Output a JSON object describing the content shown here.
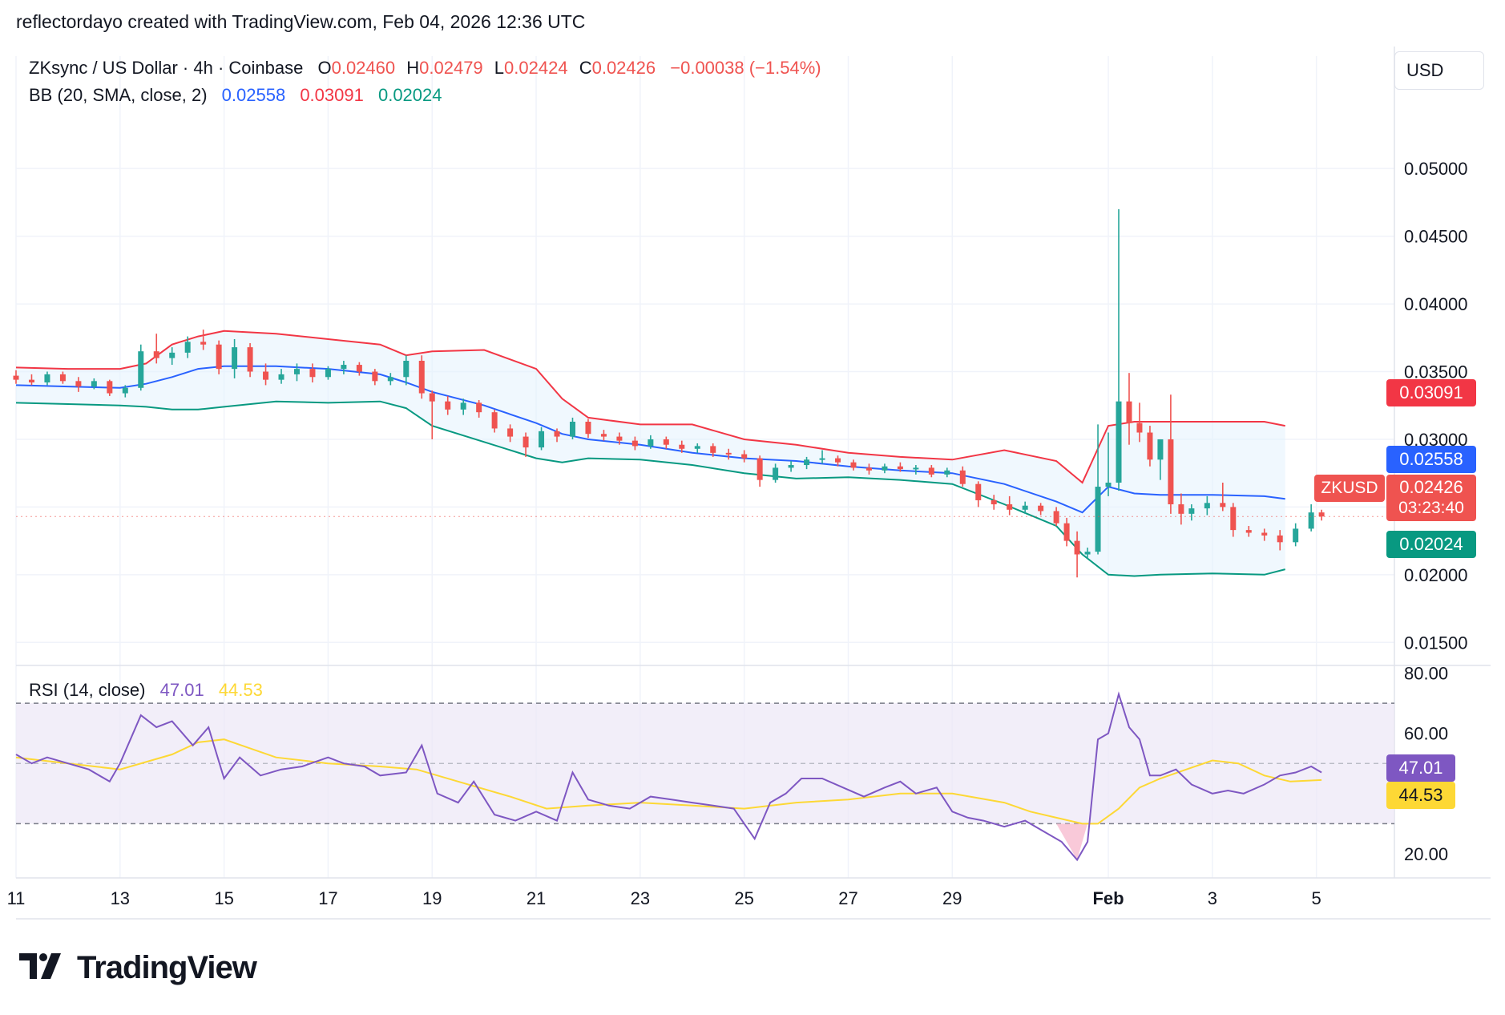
{
  "attribution": "reflectordayo created with TradingView.com, Feb 04, 2026 12:36 UTC",
  "legend": {
    "symbol": "ZKsync / US Dollar · 4h · Coinbase",
    "o_label": "O",
    "o": "0.02460",
    "h_label": "H",
    "h": "0.02479",
    "l_label": "L",
    "l": "0.02424",
    "c_label": "C",
    "c": "0.02426",
    "change": "−0.00038 (−1.54%)",
    "bb_label": "BB (20, SMA, close, 2)",
    "bb_basis": "0.02558",
    "bb_upper": "0.03091",
    "bb_lower": "0.02024",
    "rsi_label": "RSI (14, close)",
    "rsi_value": "47.01",
    "rsi_ma": "44.53"
  },
  "currency": "USD",
  "price_tags": {
    "upper": "0.03091",
    "basis": "0.02558",
    "close": "0.02426",
    "countdown": "03:23:40",
    "lower": "0.02024",
    "symbol": "ZKUSD",
    "rsi": "47.01",
    "rsi_ma": "44.53"
  },
  "logo_text": "TradingView",
  "colors": {
    "up": "#26a69a",
    "down": "#ef5350",
    "upper": "#f23645",
    "basis": "#2962ff",
    "lower": "#089981",
    "band_fill": "#e3f2fd",
    "rsi": "#7e57c2",
    "rsi_ma": "#fdd835",
    "rsi_band": "#ede7f6",
    "grid": "#f0f3fa"
  },
  "chart_data": [
    {
      "type": "candlestick",
      "title": "ZKsync / US Dollar · 4h · Coinbase",
      "x_ticks": [
        "11",
        "13",
        "15",
        "17",
        "19",
        "21",
        "23",
        "25",
        "27",
        "29",
        "Feb",
        "3",
        "5"
      ],
      "x_tick_days": [
        11,
        13,
        15,
        17,
        19,
        21,
        23,
        25,
        27,
        29,
        32,
        34,
        36
      ],
      "x_range_days": [
        11,
        37.5
      ],
      "y_ticks": [
        "0.05000",
        "0.04500",
        "0.04000",
        "0.03500",
        "0.03000",
        "0.02500",
        "0.02000",
        "0.01500"
      ],
      "y_range": [
        0.0133,
        0.0583
      ],
      "bollinger": {
        "days": [
          11,
          12,
          13,
          13.5,
          14,
          14.5,
          15,
          16,
          17,
          18,
          18.5,
          19,
          20,
          21,
          21.5,
          22,
          23,
          24,
          25,
          26,
          27,
          28,
          29,
          30,
          31,
          31.5,
          32,
          32.5,
          33,
          34,
          35,
          35.4
        ],
        "upper": [
          0.0353,
          0.0352,
          0.0352,
          0.0356,
          0.037,
          0.0376,
          0.038,
          0.0378,
          0.0374,
          0.037,
          0.0362,
          0.0365,
          0.0366,
          0.0352,
          0.033,
          0.0316,
          0.0311,
          0.0311,
          0.03,
          0.0296,
          0.029,
          0.0287,
          0.0285,
          0.0292,
          0.0284,
          0.0268,
          0.031,
          0.0313,
          0.0313,
          0.0313,
          0.0313,
          0.031
        ],
        "basis": [
          0.034,
          0.0339,
          0.0338,
          0.0341,
          0.0346,
          0.0352,
          0.0354,
          0.0354,
          0.0352,
          0.0348,
          0.0342,
          0.0335,
          0.0325,
          0.0312,
          0.0304,
          0.03,
          0.0296,
          0.029,
          0.0286,
          0.0284,
          0.028,
          0.0277,
          0.0275,
          0.0267,
          0.0254,
          0.0246,
          0.0265,
          0.026,
          0.0259,
          0.0259,
          0.0258,
          0.0256
        ],
        "lower": [
          0.0327,
          0.0326,
          0.0325,
          0.0324,
          0.0322,
          0.0322,
          0.0324,
          0.0328,
          0.0327,
          0.0328,
          0.0323,
          0.031,
          0.0298,
          0.0286,
          0.0283,
          0.0286,
          0.0285,
          0.0281,
          0.0275,
          0.0271,
          0.0272,
          0.027,
          0.0267,
          0.0252,
          0.0236,
          0.0215,
          0.02,
          0.0199,
          0.02,
          0.0201,
          0.02,
          0.0204
        ]
      },
      "candles": [
        [
          11.0,
          0.0347,
          0.0351,
          0.0341,
          0.0344
        ],
        [
          11.3,
          0.0344,
          0.0348,
          0.034,
          0.0342
        ],
        [
          11.6,
          0.0342,
          0.035,
          0.034,
          0.0348
        ],
        [
          11.9,
          0.0348,
          0.035,
          0.0341,
          0.0343
        ],
        [
          12.2,
          0.0343,
          0.0346,
          0.0335,
          0.0339
        ],
        [
          12.5,
          0.0339,
          0.0345,
          0.0337,
          0.0343
        ],
        [
          12.8,
          0.0343,
          0.0344,
          0.0332,
          0.0334
        ],
        [
          13.1,
          0.0334,
          0.034,
          0.0331,
          0.0338
        ],
        [
          13.4,
          0.0338,
          0.037,
          0.0336,
          0.0365
        ],
        [
          13.7,
          0.0365,
          0.0378,
          0.0356,
          0.036
        ],
        [
          14.0,
          0.036,
          0.0368,
          0.0355,
          0.0364
        ],
        [
          14.3,
          0.0364,
          0.0376,
          0.036,
          0.0372
        ],
        [
          14.6,
          0.0372,
          0.0381,
          0.0366,
          0.037
        ],
        [
          14.9,
          0.037,
          0.0373,
          0.0348,
          0.0352
        ],
        [
          15.2,
          0.0352,
          0.0374,
          0.0345,
          0.0368
        ],
        [
          15.5,
          0.0368,
          0.0371,
          0.0346,
          0.035
        ],
        [
          15.8,
          0.035,
          0.0356,
          0.034,
          0.0344
        ],
        [
          16.1,
          0.0344,
          0.0352,
          0.0341,
          0.0348
        ],
        [
          16.4,
          0.0348,
          0.0356,
          0.0343,
          0.0352
        ],
        [
          16.7,
          0.0352,
          0.0356,
          0.0342,
          0.0346
        ],
        [
          17.0,
          0.0346,
          0.0354,
          0.0344,
          0.0352
        ],
        [
          17.3,
          0.0352,
          0.0358,
          0.0348,
          0.0355
        ],
        [
          17.6,
          0.0355,
          0.0357,
          0.0347,
          0.035
        ],
        [
          17.9,
          0.035,
          0.0352,
          0.034,
          0.0343
        ],
        [
          18.2,
          0.0343,
          0.0349,
          0.034,
          0.0346
        ],
        [
          18.5,
          0.0346,
          0.0362,
          0.034,
          0.0358
        ],
        [
          18.8,
          0.0358,
          0.0362,
          0.033,
          0.0334
        ],
        [
          19.0,
          0.0334,
          0.0336,
          0.03,
          0.0328
        ],
        [
          19.3,
          0.0328,
          0.0332,
          0.0318,
          0.0322
        ],
        [
          19.6,
          0.0322,
          0.033,
          0.0318,
          0.0327
        ],
        [
          19.9,
          0.0327,
          0.0329,
          0.0316,
          0.032
        ],
        [
          20.2,
          0.032,
          0.0322,
          0.0305,
          0.0308
        ],
        [
          20.5,
          0.0308,
          0.0311,
          0.0298,
          0.0302
        ],
        [
          20.8,
          0.0302,
          0.0305,
          0.0287,
          0.0294
        ],
        [
          21.1,
          0.0294,
          0.0309,
          0.0292,
          0.0306
        ],
        [
          21.4,
          0.0306,
          0.0308,
          0.0298,
          0.0302
        ],
        [
          21.7,
          0.0302,
          0.0316,
          0.03,
          0.0313
        ],
        [
          22.0,
          0.0313,
          0.0315,
          0.0301,
          0.0304
        ],
        [
          22.3,
          0.0304,
          0.0307,
          0.0299,
          0.0302
        ],
        [
          22.6,
          0.0302,
          0.0305,
          0.0296,
          0.0299
        ],
        [
          22.9,
          0.0299,
          0.0302,
          0.0292,
          0.0295
        ],
        [
          23.2,
          0.0295,
          0.0303,
          0.0293,
          0.03
        ],
        [
          23.5,
          0.03,
          0.0302,
          0.0293,
          0.0296
        ],
        [
          23.8,
          0.0296,
          0.0299,
          0.029,
          0.0293
        ],
        [
          24.1,
          0.0293,
          0.0297,
          0.029,
          0.0295
        ],
        [
          24.4,
          0.0295,
          0.0297,
          0.0287,
          0.029
        ],
        [
          24.7,
          0.029,
          0.0293,
          0.0285,
          0.0289
        ],
        [
          25.0,
          0.0289,
          0.0292,
          0.0283,
          0.0286
        ],
        [
          25.3,
          0.0286,
          0.0288,
          0.0265,
          0.027
        ],
        [
          25.6,
          0.027,
          0.0282,
          0.0268,
          0.0279
        ],
        [
          25.9,
          0.0279,
          0.0284,
          0.0276,
          0.0281
        ],
        [
          26.2,
          0.0281,
          0.0287,
          0.0278,
          0.0285
        ],
        [
          26.5,
          0.0285,
          0.0292,
          0.0282,
          0.0286
        ],
        [
          26.8,
          0.0286,
          0.0288,
          0.028,
          0.0283
        ],
        [
          27.1,
          0.0283,
          0.0285,
          0.0277,
          0.0279
        ],
        [
          27.4,
          0.0279,
          0.0282,
          0.0274,
          0.0277
        ],
        [
          27.7,
          0.0277,
          0.0282,
          0.0275,
          0.028
        ],
        [
          28.0,
          0.028,
          0.0283,
          0.0276,
          0.0278
        ],
        [
          28.3,
          0.0278,
          0.0281,
          0.0274,
          0.0279
        ],
        [
          28.6,
          0.0279,
          0.0281,
          0.0272,
          0.0274
        ],
        [
          28.9,
          0.0274,
          0.0279,
          0.0272,
          0.0277
        ],
        [
          29.2,
          0.0277,
          0.028,
          0.0265,
          0.0267
        ],
        [
          29.5,
          0.0267,
          0.0269,
          0.025,
          0.0255
        ],
        [
          29.8,
          0.0255,
          0.0259,
          0.0248,
          0.0252
        ],
        [
          30.1,
          0.0252,
          0.0258,
          0.0244,
          0.0248
        ],
        [
          30.4,
          0.0248,
          0.0254,
          0.0245,
          0.0251
        ],
        [
          30.7,
          0.0251,
          0.0253,
          0.0244,
          0.0247
        ],
        [
          31.0,
          0.0247,
          0.025,
          0.0236,
          0.0238
        ],
        [
          31.2,
          0.0238,
          0.0242,
          0.0221,
          0.0225
        ],
        [
          31.4,
          0.0225,
          0.0232,
          0.0198,
          0.0215
        ],
        [
          31.6,
          0.0215,
          0.022,
          0.0212,
          0.0217
        ],
        [
          31.8,
          0.0217,
          0.0311,
          0.0215,
          0.0265
        ],
        [
          32.0,
          0.0265,
          0.0305,
          0.0258,
          0.0268
        ],
        [
          32.2,
          0.0268,
          0.047,
          0.0262,
          0.0328
        ],
        [
          32.4,
          0.0328,
          0.0349,
          0.0296,
          0.0312
        ],
        [
          32.6,
          0.0312,
          0.0327,
          0.0298,
          0.0305
        ],
        [
          32.8,
          0.0305,
          0.031,
          0.028,
          0.0285
        ],
        [
          33.0,
          0.0285,
          0.03,
          0.027,
          0.03
        ],
        [
          33.2,
          0.03,
          0.0333,
          0.0245,
          0.0252
        ],
        [
          33.4,
          0.0252,
          0.026,
          0.0237,
          0.0245
        ],
        [
          33.6,
          0.0245,
          0.0252,
          0.024,
          0.0249
        ],
        [
          33.9,
          0.0249,
          0.0258,
          0.0244,
          0.0253
        ],
        [
          34.2,
          0.0253,
          0.0268,
          0.0247,
          0.025
        ],
        [
          34.4,
          0.025,
          0.0253,
          0.0228,
          0.0233
        ],
        [
          34.7,
          0.0233,
          0.0236,
          0.0228,
          0.0231
        ],
        [
          35.0,
          0.0231,
          0.0234,
          0.0225,
          0.0229
        ],
        [
          35.3,
          0.0229,
          0.0233,
          0.0218,
          0.0224
        ],
        [
          35.6,
          0.0224,
          0.0238,
          0.0221,
          0.0234
        ],
        [
          35.9,
          0.0234,
          0.0252,
          0.0232,
          0.0246
        ],
        [
          36.1,
          0.0246,
          0.0248,
          0.024,
          0.0243
        ]
      ]
    },
    {
      "type": "line",
      "title": "RSI (14, close)",
      "y_ticks": [
        "80.00",
        "60.00",
        "20.00"
      ],
      "y_range": [
        12,
        82
      ],
      "bands": [
        30,
        70
      ],
      "mid": 50,
      "rsi_days": [
        11,
        11.3,
        11.6,
        12.0,
        12.4,
        12.8,
        13.0,
        13.4,
        13.7,
        14.0,
        14.4,
        14.7,
        15.0,
        15.3,
        15.7,
        16.1,
        16.5,
        17.0,
        17.3,
        17.7,
        18.0,
        18.5,
        18.8,
        19.1,
        19.5,
        19.8,
        20.2,
        20.6,
        21.0,
        21.4,
        21.7,
        22.0,
        22.4,
        22.8,
        23.2,
        23.6,
        24.0,
        24.4,
        24.8,
        25.2,
        25.5,
        25.8,
        26.1,
        26.5,
        26.9,
        27.3,
        27.7,
        28.0,
        28.3,
        28.7,
        29.0,
        29.3,
        29.6,
        30.0,
        30.4,
        30.8,
        31.1,
        31.4,
        31.6,
        31.8,
        32.0,
        32.2,
        32.4,
        32.6,
        32.8,
        33.0,
        33.3,
        33.6,
        34.0,
        34.3,
        34.6,
        35.0,
        35.3,
        35.6,
        35.9,
        36.1
      ],
      "rsi_values": [
        53,
        50,
        52,
        50,
        48,
        44,
        50,
        66,
        62,
        64,
        56,
        62,
        45,
        52,
        46,
        48,
        49,
        52,
        50,
        49,
        46,
        47,
        56,
        40,
        37,
        44,
        33,
        31,
        34,
        31,
        47,
        38,
        36,
        35,
        39,
        38,
        37,
        36,
        35,
        25,
        37,
        40,
        45,
        45,
        42,
        39,
        42,
        44,
        40,
        42,
        34,
        32,
        31,
        29,
        31,
        27,
        24,
        18,
        24,
        58,
        60,
        73,
        62,
        58,
        46,
        46,
        48,
        43,
        40,
        41,
        40,
        43,
        46,
        47,
        49,
        47
      ],
      "ma_days": [
        11,
        12,
        13,
        14,
        14.5,
        15,
        15.5,
        16,
        17,
        18,
        18.7,
        19.5,
        20.5,
        21.2,
        22,
        23,
        24,
        25,
        26,
        27,
        28,
        29,
        30,
        30.5,
        31,
        31.5,
        31.8,
        32.2,
        32.6,
        33.0,
        33.5,
        34.0,
        34.5,
        35.0,
        35.5,
        36.1
      ],
      "ma_values": [
        52,
        50,
        48,
        53,
        57,
        58,
        55,
        52,
        50,
        49,
        48,
        44,
        39,
        35,
        36,
        37,
        36,
        35,
        37,
        38,
        40,
        40,
        37,
        34,
        32,
        30,
        30,
        35,
        42,
        45,
        48,
        51,
        50,
        46,
        44,
        44.5
      ]
    }
  ]
}
